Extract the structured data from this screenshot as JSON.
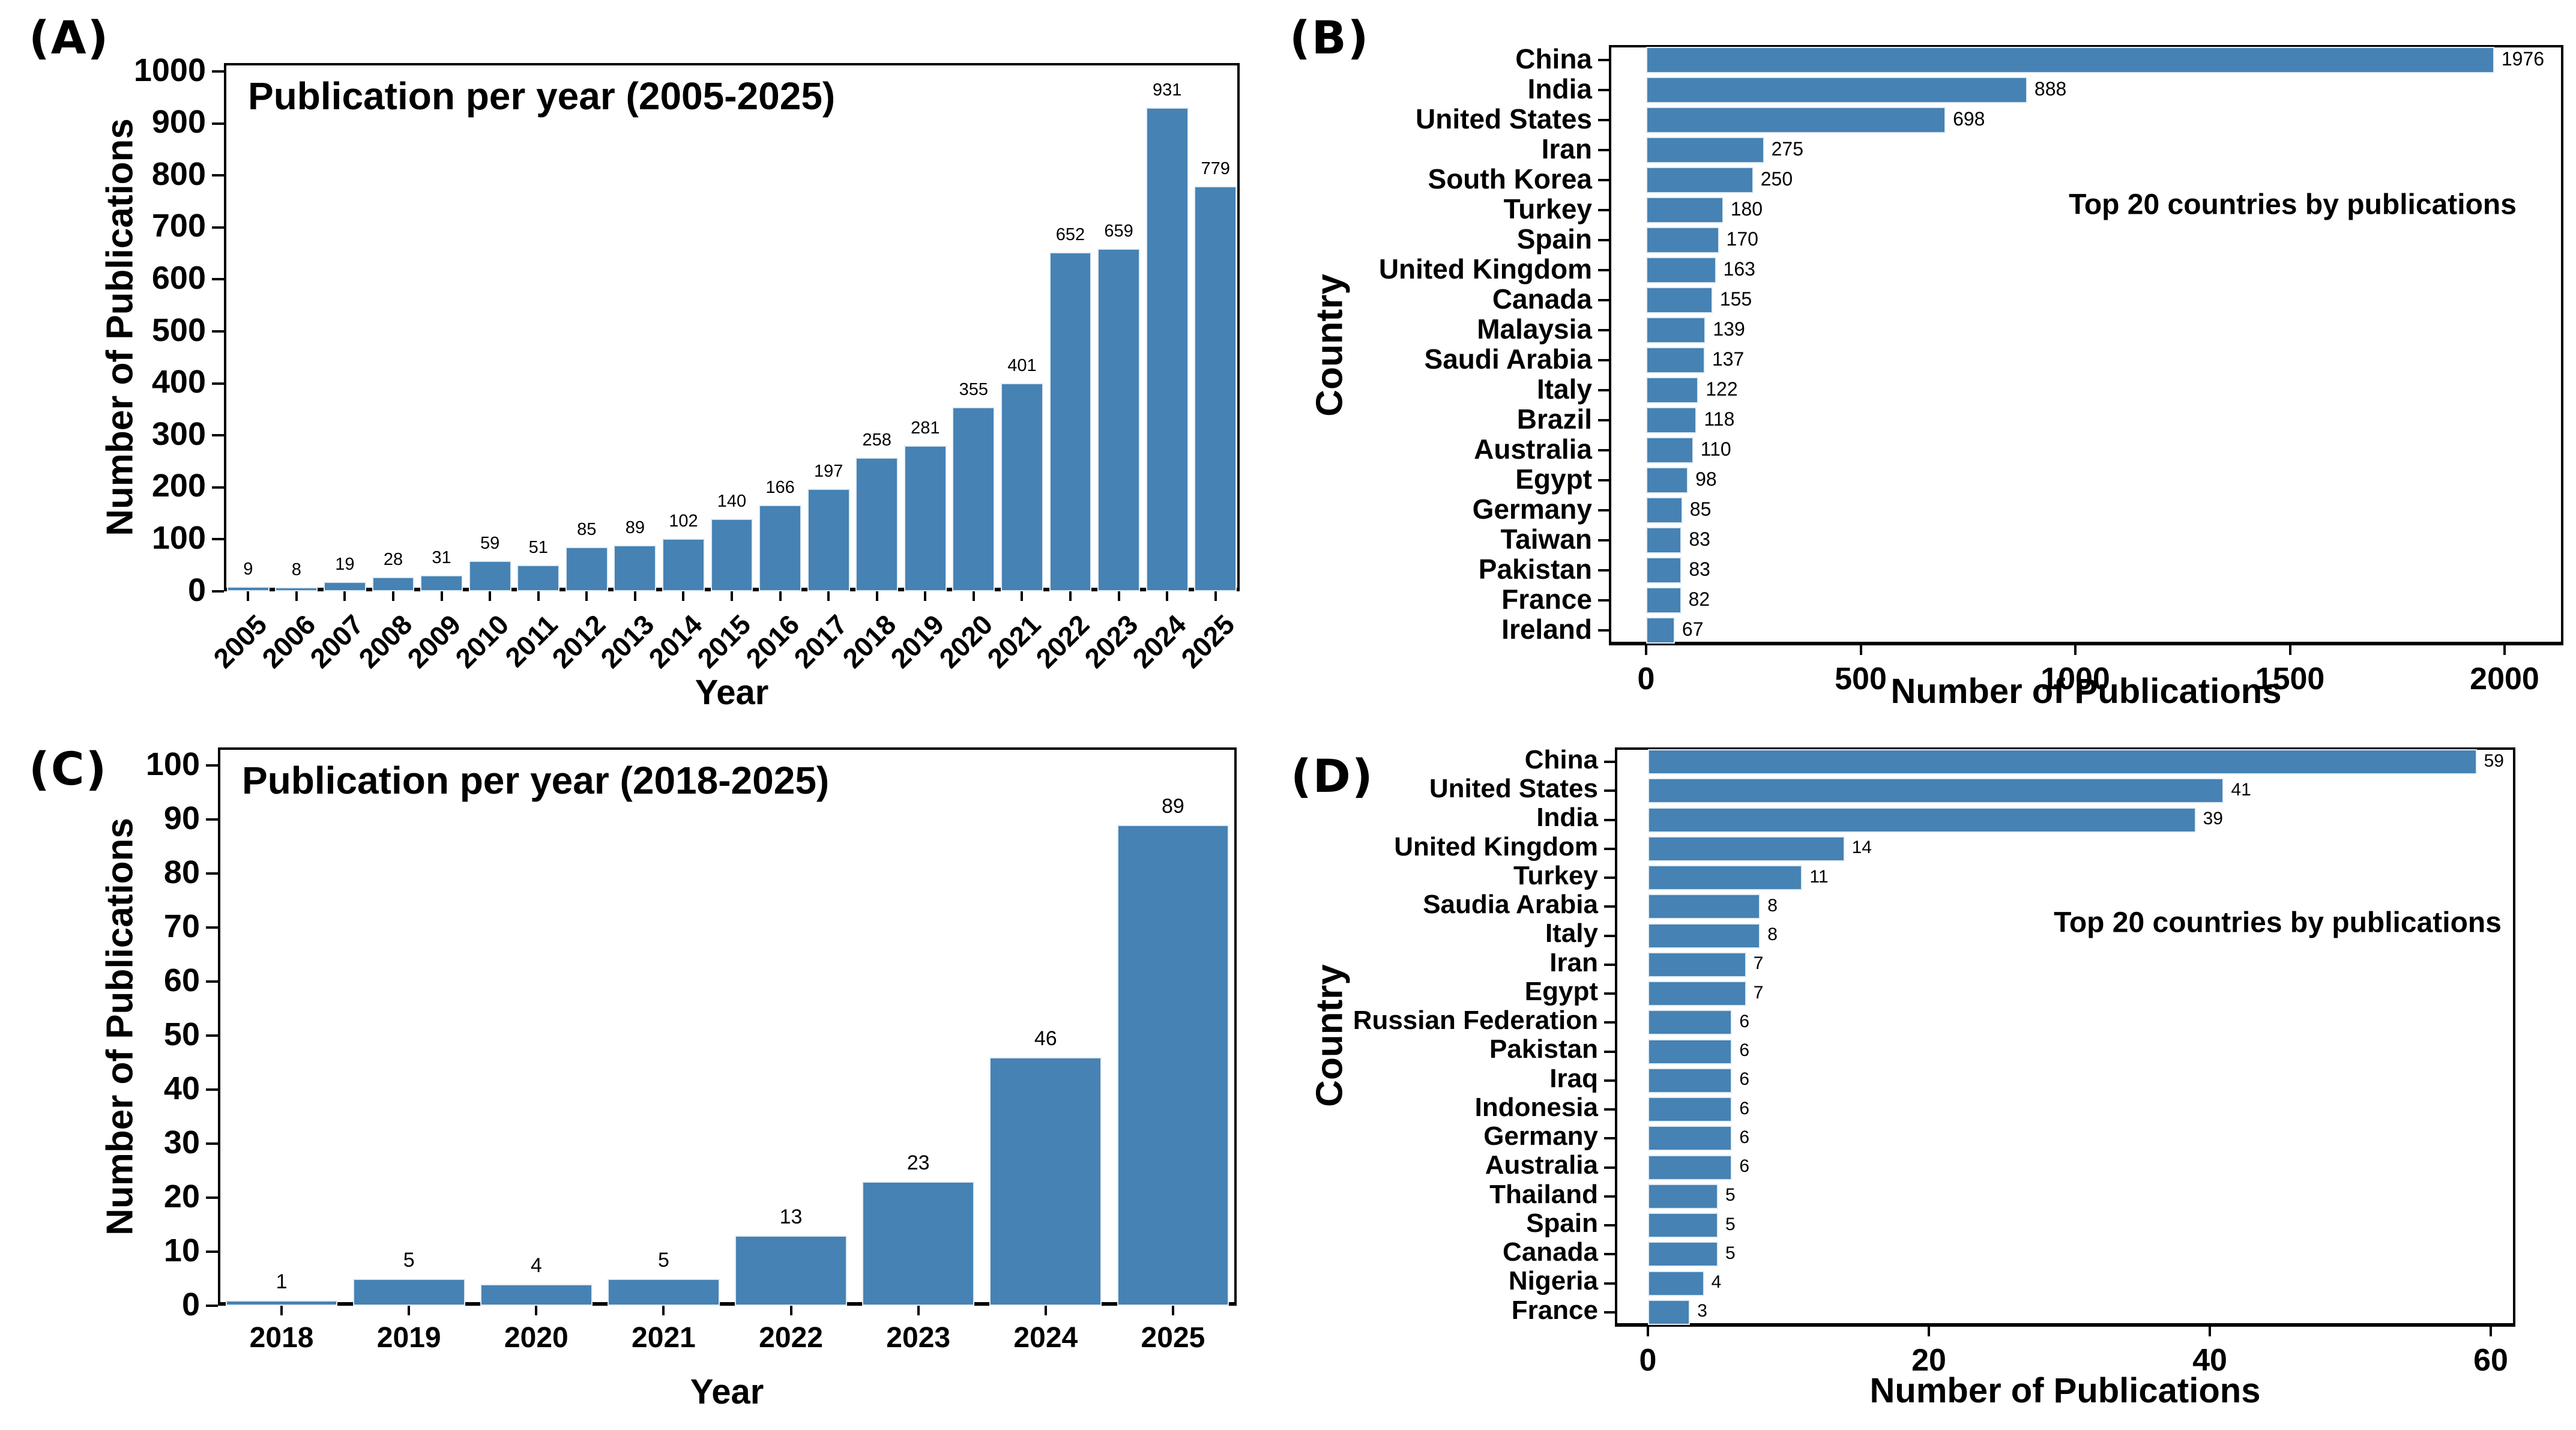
{
  "figure": {
    "background": "#ffffff",
    "bar_color": "#4682b4",
    "spine_color": "#000000",
    "text_color": "#000000"
  },
  "chart_data": [
    {
      "panel": "(A)",
      "type": "bar",
      "title": "Publication per year (2005-2025)",
      "xlabel": "Year",
      "ylabel": "Number of Publications",
      "categories": [
        "2005",
        "2006",
        "2007",
        "2008",
        "2009",
        "2010",
        "2011",
        "2012",
        "2013",
        "2014",
        "2015",
        "2016",
        "2017",
        "2018",
        "2019",
        "2020",
        "2021",
        "2022",
        "2023",
        "2024",
        "2025"
      ],
      "values": [
        9,
        8,
        19,
        28,
        31,
        59,
        51,
        85,
        89,
        102,
        140,
        166,
        197,
        258,
        281,
        355,
        401,
        652,
        659,
        931,
        779
      ],
      "ylim": [
        0,
        1000
      ],
      "yticks": [
        0,
        100,
        200,
        300,
        400,
        500,
        600,
        700,
        800,
        900,
        1000
      ],
      "grid": false,
      "legend": "none"
    },
    {
      "panel": "(B)",
      "type": "bar",
      "orientation": "horizontal",
      "annotation": "Top 20 countries by publications",
      "xlabel": "Number of Publications",
      "ylabel": "Country",
      "categories": [
        "China",
        "India",
        "United States",
        "Iran",
        "South Korea",
        "Turkey",
        "Spain",
        "United Kingdom",
        "Canada",
        "Malaysia",
        "Saudi Arabia",
        "Italy",
        "Brazil",
        "Australia",
        "Egypt",
        "Germany",
        "Taiwan",
        "Pakistan",
        "France",
        "Ireland"
      ],
      "values": [
        1976,
        888,
        698,
        275,
        250,
        180,
        170,
        163,
        155,
        139,
        137,
        122,
        118,
        110,
        98,
        85,
        83,
        83,
        82,
        67
      ],
      "xlim": [
        0,
        2130
      ],
      "xticks": [
        0,
        500,
        1000,
        1500,
        2000
      ],
      "grid": false,
      "legend": "none"
    },
    {
      "panel": "(C)",
      "type": "bar",
      "title": "Publication per year (2018-2025)",
      "xlabel": "Year",
      "ylabel": "Number of Publications",
      "categories": [
        "2018",
        "2019",
        "2020",
        "2021",
        "2022",
        "2023",
        "2024",
        "2025"
      ],
      "values": [
        1,
        5,
        4,
        5,
        13,
        23,
        46,
        89
      ],
      "ylim": [
        0,
        103
      ],
      "yticks": [
        0,
        10,
        20,
        30,
        40,
        50,
        60,
        70,
        80,
        90,
        100
      ],
      "grid": false,
      "legend": "none"
    },
    {
      "panel": "(D)",
      "type": "bar",
      "orientation": "horizontal",
      "annotation": "Top 20 countries by publications",
      "xlabel": "Number of Publications",
      "ylabel": "Country",
      "categories": [
        "China",
        "United States",
        "India",
        "United Kingdom",
        "Turkey",
        "Saudia Arabia",
        "Italy",
        "Iran",
        "Egypt",
        "Russian Federation",
        "Pakistan",
        "Iraq",
        "Indonesia",
        "Germany",
        "Australia",
        "Thailand",
        "Spain",
        "Canada",
        "Nigeria",
        "France"
      ],
      "values": [
        59,
        41,
        39,
        14,
        11,
        8,
        8,
        7,
        7,
        6,
        6,
        6,
        6,
        6,
        6,
        5,
        5,
        5,
        4,
        3
      ],
      "xlim": [
        0,
        62
      ],
      "xticks": [
        0,
        20,
        40,
        60
      ],
      "grid": false,
      "legend": "none"
    }
  ]
}
